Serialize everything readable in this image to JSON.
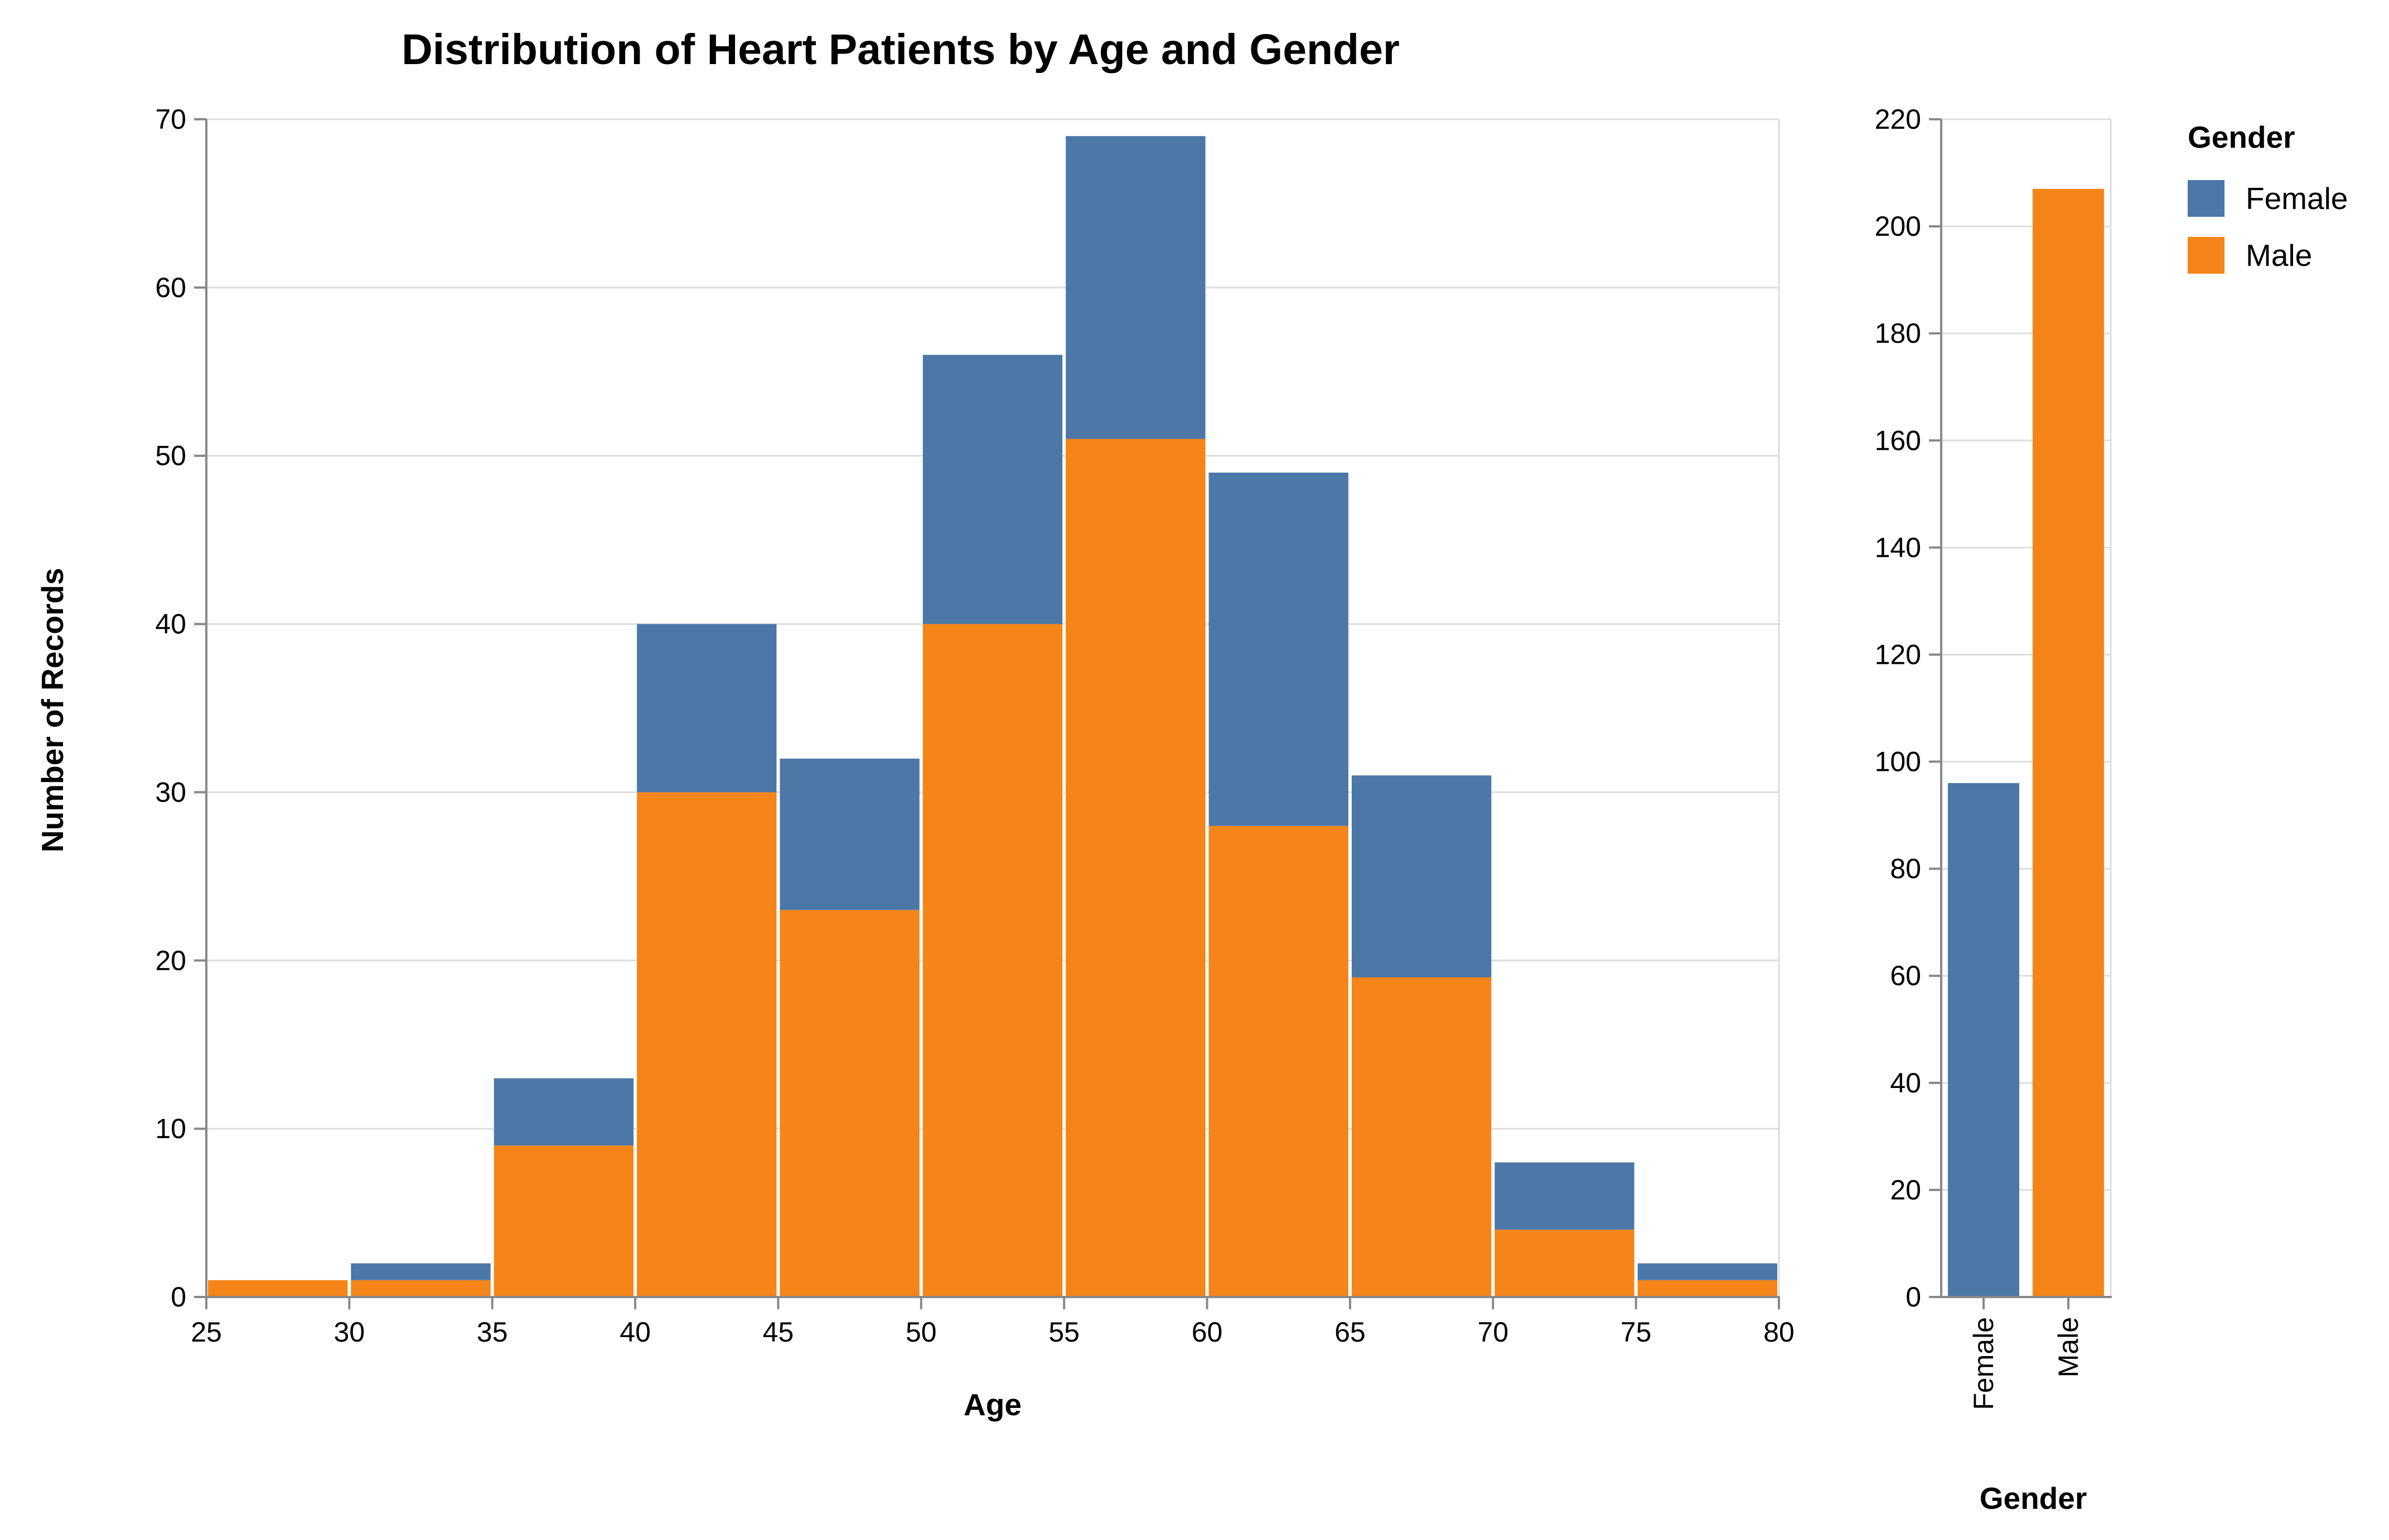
{
  "chart_data": [
    {
      "type": "bar",
      "stacked": true,
      "title": "Distribution of Heart Patients by Age and Gender",
      "xlabel": "Age",
      "ylabel": "Number of Records",
      "bins": [
        [
          25,
          30
        ],
        [
          30,
          35
        ],
        [
          35,
          40
        ],
        [
          40,
          45
        ],
        [
          45,
          50
        ],
        [
          50,
          55
        ],
        [
          55,
          60
        ],
        [
          60,
          65
        ],
        [
          65,
          70
        ],
        [
          70,
          75
        ],
        [
          75,
          80
        ]
      ],
      "x_ticks": [
        "25",
        "30",
        "35",
        "40",
        "45",
        "50",
        "55",
        "60",
        "65",
        "70",
        "75",
        "80"
      ],
      "y_ticks": [
        "0",
        "10",
        "20",
        "30",
        "40",
        "50",
        "60",
        "70"
      ],
      "xlim": [
        25,
        80
      ],
      "ylim": [
        0,
        70
      ],
      "grid": true,
      "series": [
        {
          "name": "Male",
          "color": "#f58518",
          "values": [
            1,
            1,
            9,
            30,
            23,
            40,
            51,
            28,
            19,
            4,
            1
          ]
        },
        {
          "name": "Female",
          "color": "#4c78a8",
          "values": [
            0,
            1,
            4,
            10,
            9,
            16,
            18,
            21,
            12,
            4,
            1
          ]
        }
      ]
    },
    {
      "type": "bar",
      "xlabel": "Gender",
      "categories": [
        "Female",
        "Male"
      ],
      "values": [
        96,
        207
      ],
      "colors": [
        "#4c78a8",
        "#f58518"
      ],
      "y_ticks": [
        "0",
        "20",
        "40",
        "60",
        "80",
        "100",
        "120",
        "140",
        "160",
        "180",
        "200",
        "220"
      ],
      "ylim": [
        0,
        220
      ],
      "grid": true
    }
  ],
  "legend": {
    "title": "Gender",
    "placement": "top-right",
    "items": [
      {
        "label": "Female",
        "color": "#4c78a8"
      },
      {
        "label": "Male",
        "color": "#f58518"
      }
    ]
  }
}
